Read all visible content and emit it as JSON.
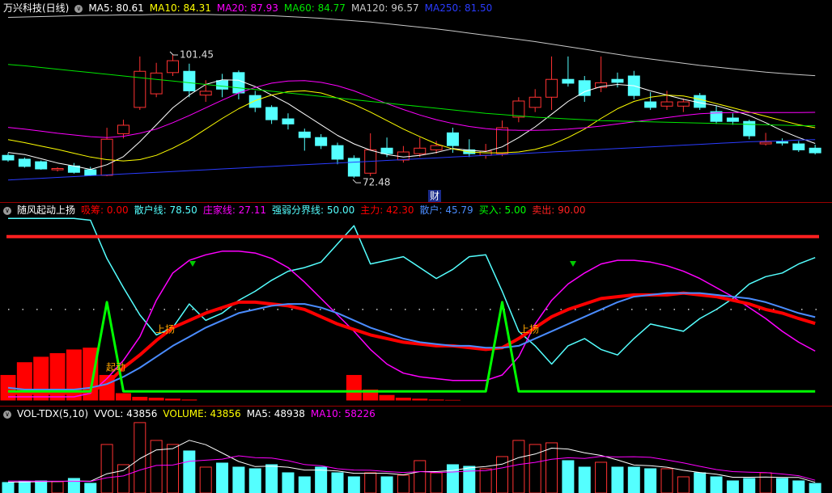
{
  "chart_data": [
    {
      "type": "candlestick",
      "title": "万兴科技(日线)",
      "ylim": [
        66.8,
        114.4
      ],
      "up_color": "#ff3232",
      "down_color": "#54ffff",
      "open": [
        77.8,
        76.9,
        76.3,
        74.4,
        75.3,
        74.4,
        73.1,
        82.9,
        89.1,
        92.3,
        97.3,
        97.6,
        92.0,
        95.4,
        97.3,
        91.9,
        89.1,
        86.4,
        83.3,
        82.0,
        80.1,
        77.1,
        73.6,
        79.5,
        76.7,
        78.2,
        79.1,
        83.1,
        79.1,
        77.8,
        78.2,
        86.8,
        89.1,
        91.5,
        95.7,
        95.4,
        93.8,
        95.7,
        96.5,
        90.4,
        89.4,
        89.4,
        91.9,
        88.1,
        86.6,
        85.8,
        80.5,
        81.0,
        80.5,
        79.5
      ],
      "high": [
        78.4,
        77.3,
        76.6,
        75.0,
        76.0,
        75.1,
        84.3,
        86.2,
        101.1,
        99.6,
        101.45,
        99.4,
        95.5,
        97.0,
        97.8,
        93.0,
        89.6,
        87.7,
        84.1,
        82.8,
        80.8,
        77.8,
        83.0,
        82.0,
        80.0,
        82.0,
        81.2,
        84.3,
        81.6,
        80.5,
        86.0,
        91.5,
        93.4,
        101.1,
        101.1,
        96.5,
        101.1,
        97.3,
        97.7,
        92.7,
        93.0,
        91.2,
        92.5,
        89.6,
        87.7,
        86.2,
        83.1,
        81.8,
        81.2,
        80.3
      ],
      "low": [
        76.3,
        74.9,
        74.4,
        74.0,
        73.5,
        72.9,
        72.9,
        81.8,
        88.5,
        91.5,
        96.5,
        91.5,
        90.4,
        91.5,
        91.0,
        88.0,
        85.2,
        83.9,
        78.9,
        79.3,
        75.7,
        72.48,
        72.9,
        77.4,
        76.1,
        77.4,
        78.2,
        78.4,
        77.4,
        77.0,
        77.6,
        85.6,
        88.0,
        88.5,
        94.0,
        90.4,
        92.7,
        93.8,
        91.0,
        88.5,
        88.5,
        88.0,
        88.5,
        85.2,
        85.0,
        81.6,
        80.1,
        80.1,
        78.6,
        78.0
      ],
      "close": [
        76.7,
        75.2,
        74.6,
        74.7,
        73.8,
        73.1,
        81.6,
        84.9,
        97.6,
        97.2,
        100.1,
        93.0,
        92.9,
        93.4,
        92.5,
        89.1,
        86.2,
        85.2,
        82.0,
        80.1,
        76.9,
        72.9,
        79.1,
        78.2,
        78.6,
        79.5,
        80.1,
        80.1,
        78.2,
        78.8,
        84.3,
        90.6,
        91.5,
        95.7,
        94.8,
        91.9,
        94.9,
        95.0,
        91.9,
        89.1,
        90.4,
        90.4,
        89.1,
        85.8,
        85.8,
        82.4,
        80.9,
        80.7,
        79.1,
        78.4
      ],
      "series": [
        {
          "label": "MA5: 80.61",
          "color": "#ffffff",
          "style": "line",
          "width": 1,
          "values": [
            78.5,
            78.0,
            77.0,
            76.0,
            75.3,
            74.5,
            75.6,
            77.5,
            81.0,
            85.0,
            89.0,
            92.0,
            94.5,
            95.6,
            95.5,
            94.0,
            92.0,
            90.0,
            87.5,
            85.0,
            82.5,
            80.5,
            79.0,
            78.0,
            77.4,
            77.8,
            78.5,
            79.4,
            79.0,
            78.7,
            79.8,
            82.0,
            84.5,
            87.5,
            90.5,
            92.8,
            94.0,
            94.5,
            94.2,
            93.0,
            92.0,
            91.0,
            90.2,
            89.5,
            88.4,
            87.2,
            85.5,
            83.6,
            82.0,
            80.61
          ]
        },
        {
          "label": "MA10: 84.31",
          "color": "#ffff00",
          "style": "line",
          "width": 1,
          "values": [
            81.5,
            80.8,
            80.0,
            79.2,
            78.3,
            77.4,
            76.8,
            76.5,
            76.8,
            77.8,
            79.5,
            81.5,
            84.0,
            86.5,
            88.8,
            90.7,
            92.0,
            92.8,
            93.0,
            92.5,
            91.3,
            89.8,
            88.0,
            86.0,
            84.0,
            82.2,
            80.5,
            79.3,
            78.6,
            78.4,
            78.4,
            78.6,
            79.2,
            80.3,
            82.0,
            84.0,
            86.5,
            88.8,
            90.5,
            91.5,
            92.0,
            91.8,
            91.0,
            90.0,
            89.0,
            88.0,
            87.0,
            86.0,
            85.0,
            84.31
          ]
        },
        {
          "label": "MA20: 87.93",
          "color": "#ff00ff",
          "style": "line",
          "width": 1,
          "values": [
            84.4,
            84.0,
            83.5,
            83.0,
            82.6,
            82.2,
            82.0,
            82.3,
            83.0,
            84.0,
            85.5,
            87.2,
            89.0,
            90.8,
            92.5,
            93.8,
            94.8,
            95.3,
            95.4,
            95.0,
            94.2,
            93.0,
            91.5,
            90.0,
            88.6,
            87.3,
            86.2,
            85.3,
            84.6,
            84.1,
            83.8,
            83.7,
            83.7,
            83.8,
            84.0,
            84.3,
            84.7,
            85.2,
            85.7,
            86.2,
            86.7,
            87.2,
            87.6,
            87.8,
            87.9,
            87.9,
            87.9,
            87.9,
            87.9,
            87.93
          ]
        },
        {
          "label": "MA60: 84.77",
          "color": "#00e600",
          "style": "line",
          "width": 1,
          "values": [
            99.2,
            98.9,
            98.5,
            98.1,
            97.7,
            97.3,
            96.9,
            96.5,
            96.1,
            95.7,
            95.3,
            94.9,
            94.5,
            94.1,
            93.7,
            93.3,
            92.9,
            92.5,
            92.1,
            91.7,
            91.3,
            90.9,
            90.5,
            90.1,
            89.7,
            89.3,
            88.9,
            88.5,
            88.1,
            87.7,
            87.4,
            87.1,
            86.8,
            86.6,
            86.4,
            86.2,
            86.0,
            85.9,
            85.8,
            85.7,
            85.6,
            85.5,
            85.4,
            85.3,
            85.2,
            85.1,
            85.0,
            84.9,
            84.8,
            84.77
          ]
        },
        {
          "label": "MA120: 96.57",
          "color": "#c8c8c8",
          "style": "line",
          "width": 1,
          "values": [
            110.3,
            110.4,
            110.5,
            110.6,
            110.7,
            110.8,
            110.8,
            110.9,
            110.9,
            111.0,
            111.0,
            111.0,
            111.0,
            110.9,
            110.9,
            110.8,
            110.7,
            110.5,
            110.3,
            110.1,
            109.8,
            109.5,
            109.2,
            108.8,
            108.4,
            108.0,
            107.6,
            107.1,
            106.6,
            106.1,
            105.6,
            105.1,
            104.6,
            104.0,
            103.4,
            102.8,
            102.2,
            101.6,
            101.0,
            100.5,
            100.0,
            99.5,
            99.0,
            98.6,
            98.2,
            97.8,
            97.4,
            97.1,
            96.8,
            96.57
          ]
        },
        {
          "label": "MA250: 81.50",
          "color": "#2a3cff",
          "style": "line",
          "width": 1,
          "values": [
            72.0,
            72.2,
            72.4,
            72.6,
            72.8,
            73.0,
            73.2,
            73.4,
            73.6,
            73.8,
            74.0,
            74.2,
            74.4,
            74.6,
            74.8,
            75.0,
            75.2,
            75.4,
            75.6,
            75.8,
            76.0,
            76.2,
            76.4,
            76.6,
            76.8,
            77.0,
            77.2,
            77.4,
            77.6,
            77.8,
            78.0,
            78.2,
            78.4,
            78.6,
            78.8,
            79.0,
            79.2,
            79.4,
            79.6,
            79.8,
            80.0,
            80.2,
            80.4,
            80.6,
            80.8,
            81.0,
            81.1,
            81.2,
            81.4,
            81.5
          ]
        }
      ],
      "annotations": [
        {
          "value": 101.45
        },
        {
          "value": 72.48
        },
        {
          "text": "财"
        }
      ]
    },
    {
      "type": "line",
      "title": "随风起动上扬",
      "ylim": [
        -2,
        109
      ],
      "series": [
        {
          "label": "吸筹: 0.00",
          "color": "#ff0000",
          "style": "bar",
          "values": [
            14,
            21,
            24,
            26,
            28,
            29,
            14,
            4,
            2,
            1.5,
            1,
            0.5,
            0,
            0,
            0,
            0,
            0,
            0,
            0,
            0,
            0,
            14,
            6,
            3,
            1.5,
            1,
            0.5,
            0.3,
            0,
            0,
            0,
            0,
            0,
            0,
            0,
            0,
            0,
            0,
            0,
            0,
            0,
            0,
            0,
            0,
            0,
            0,
            0,
            0,
            0,
            0
          ]
        },
        {
          "label": "散户线: 78.50",
          "color": "#54ffff",
          "style": "line",
          "width": 1.5,
          "values": [
            100,
            100,
            100,
            100,
            100,
            99,
            78,
            62,
            47,
            36,
            40,
            53,
            44,
            48,
            55,
            60,
            66,
            71,
            73,
            76,
            86,
            96,
            75,
            77,
            79,
            73,
            67,
            72,
            79,
            80,
            60,
            38,
            30,
            20,
            30,
            34,
            28,
            25,
            34,
            42,
            40,
            38,
            45,
            50,
            56,
            64,
            68,
            70,
            75,
            78.5
          ]
        },
        {
          "label": "庄家线: 27.11",
          "color": "#ff00ff",
          "style": "line",
          "width": 1.5,
          "values": [
            2,
            2,
            2,
            2,
            2,
            4,
            12,
            22,
            35,
            55,
            70,
            77,
            80,
            82,
            82,
            81,
            78,
            73,
            65,
            56,
            47,
            38,
            28,
            20,
            15,
            13,
            12,
            11,
            11,
            11,
            14,
            24,
            42,
            55,
            64,
            70,
            75,
            77,
            77,
            76,
            74,
            71,
            67,
            62,
            57,
            51,
            45,
            38,
            32,
            27.11
          ]
        },
        {
          "label": "强弱分界线: 50.00",
          "color": "#54ffff",
          "style": "level",
          "dash": true,
          "width": 1.5,
          "level": 50
        },
        {
          "label": "主力: 42.30",
          "color": "#ff0000",
          "style": "line",
          "width": 4,
          "values": [
            4,
            4,
            4,
            4,
            4,
            5,
            9,
            18,
            25,
            33,
            40,
            44,
            48,
            51,
            54,
            54,
            53,
            52,
            50,
            46,
            42,
            39,
            36,
            34,
            32,
            31,
            30,
            30,
            29,
            28,
            29,
            34,
            40,
            46,
            50,
            53,
            56,
            57,
            58,
            58,
            58,
            59,
            58,
            57,
            55,
            53,
            50,
            48,
            45,
            42.3
          ]
        },
        {
          "label": "散户: 45.79",
          "color": "#4a8cff",
          "style": "line",
          "width": 2,
          "values": [
            7,
            6,
            6,
            6,
            6,
            7,
            9,
            13,
            18,
            24,
            30,
            35,
            40,
            44,
            48,
            50,
            52,
            53,
            53,
            51,
            48,
            44,
            40,
            37,
            34,
            32,
            31,
            30,
            30,
            29,
            29,
            30,
            34,
            38,
            42,
            46,
            50,
            54,
            57,
            58,
            59,
            59,
            59,
            58,
            57,
            56,
            54,
            51,
            48,
            45.79
          ]
        },
        {
          "label": "买入: 5.00",
          "color": "#00ff00",
          "style": "line",
          "width": 3,
          "values": [
            5,
            5,
            5,
            5,
            5,
            5,
            54,
            5,
            5,
            5,
            5,
            5,
            5,
            5,
            5,
            5,
            5,
            5,
            5,
            5,
            5,
            5,
            5,
            5,
            5,
            5,
            5,
            5,
            5,
            5,
            54,
            5,
            5,
            5,
            5,
            5,
            5,
            5,
            5,
            5,
            5,
            5,
            5,
            5,
            5,
            5,
            5,
            5,
            5,
            5
          ]
        },
        {
          "label": "卖出: 90.00",
          "color": "#ff2020",
          "style": "level",
          "width": 4,
          "level": 90
        }
      ],
      "annotations": [
        {
          "text": "上扬"
        },
        {
          "text": "上扬"
        },
        {
          "text": "起动"
        }
      ]
    },
    {
      "type": "bar",
      "title": "VOL-TDX(5,10)",
      "vvol": "VVOL: 43856",
      "ylim": [
        0,
        340000
      ],
      "series": [
        {
          "label": "VOLUME: 43856",
          "color": "#ffff00",
          "style": "bar",
          "values": [
            48100,
            51800,
            55500,
            51800,
            66600,
            44400,
            222000,
            129500,
            321900,
            240500,
            222000,
            192400,
            118400,
            136900,
            118400,
            111000,
            129500,
            92500,
            74000,
            118400,
            92500,
            74000,
            92500,
            74000,
            81400,
            148000,
            92500,
            129500,
            122100,
            111000,
            166500,
            240500,
            222000,
            229400,
            148000,
            118400,
            140600,
            118400,
            118400,
            111000,
            111000,
            74000,
            92500,
            74000,
            55500,
            66600,
            92500,
            66600,
            55500,
            43856
          ]
        },
        {
          "label": "MA5: 48938",
          "color": "#ffffff",
          "style": "line",
          "width": 1,
          "values": [
            50000,
            50000,
            52000,
            53000,
            55000,
            54000,
            88000,
            103000,
            157000,
            197000,
            203000,
            241000,
            221000,
            183000,
            144000,
            121000,
            123000,
            118000,
            105000,
            105000,
            101000,
            90000,
            90000,
            90000,
            83000,
            98000,
            98000,
            103000,
            115000,
            121000,
            132000,
            162000,
            178000,
            205000,
            201000,
            184000,
            172000,
            151000,
            128000,
            125000,
            118000,
            104000,
            94000,
            86000,
            72000,
            72000,
            73000,
            71000,
            71000,
            48938
          ]
        },
        {
          "label": "MA10: 58226",
          "color": "#ff00ff",
          "style": "line",
          "width": 1,
          "values": [
            55000,
            55000,
            54000,
            54000,
            54000,
            53000,
            70000,
            78000,
            105000,
            126000,
            128000,
            145000,
            150000,
            155000,
            170000,
            162000,
            160000,
            148000,
            130000,
            125000,
            111000,
            105000,
            104000,
            98000,
            94000,
            98000,
            94000,
            96000,
            100000,
            102000,
            115000,
            130000,
            140000,
            154000,
            161000,
            158000,
            167000,
            165000,
            166000,
            163000,
            151000,
            138000,
            122000,
            107000,
            98000,
            95000,
            93000,
            87000,
            79000,
            58226
          ]
        }
      ]
    }
  ]
}
